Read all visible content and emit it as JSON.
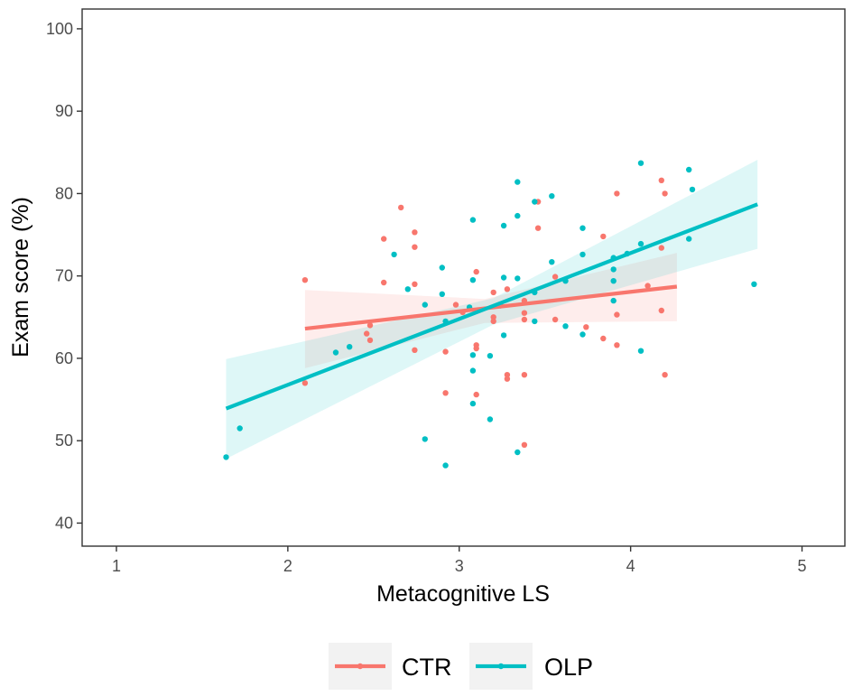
{
  "chart_data": {
    "type": "scatter",
    "title": "",
    "xlabel": "Metacognitive LS",
    "ylabel": "Exam score (%)",
    "xlim": [
      0.8,
      5.25
    ],
    "ylim": [
      37.2,
      102.4
    ],
    "xticks": [
      1,
      2,
      3,
      4,
      5
    ],
    "yticks": [
      40,
      50,
      60,
      70,
      80,
      90,
      100
    ],
    "grid": false,
    "legend_position": "bottom",
    "series": [
      {
        "name": "CTR",
        "color": "#F8766D",
        "points": [
          [
            2.1,
            69.5
          ],
          [
            2.1,
            57.0
          ],
          [
            2.46,
            63.0
          ],
          [
            2.48,
            64.0
          ],
          [
            2.48,
            62.2
          ],
          [
            2.56,
            74.5
          ],
          [
            2.56,
            69.2
          ],
          [
            2.66,
            78.3
          ],
          [
            2.74,
            75.3
          ],
          [
            2.74,
            73.5
          ],
          [
            2.74,
            69.0
          ],
          [
            2.74,
            61.0
          ],
          [
            2.92,
            60.8
          ],
          [
            2.92,
            55.8
          ],
          [
            3.1,
            70.5
          ],
          [
            3.1,
            61.6
          ],
          [
            3.1,
            61.2
          ],
          [
            3.1,
            55.6
          ],
          [
            3.2,
            68.0
          ],
          [
            3.2,
            65.0
          ],
          [
            3.2,
            64.5
          ],
          [
            3.28,
            68.4
          ],
          [
            3.28,
            58.0
          ],
          [
            3.28,
            57.5
          ],
          [
            3.38,
            67.0
          ],
          [
            3.38,
            65.5
          ],
          [
            3.38,
            64.7
          ],
          [
            3.38,
            58.0
          ],
          [
            3.38,
            49.5
          ],
          [
            3.46,
            79.0
          ],
          [
            3.46,
            75.8
          ],
          [
            3.56,
            69.9
          ],
          [
            3.56,
            64.7
          ],
          [
            3.74,
            63.8
          ],
          [
            3.84,
            74.8
          ],
          [
            3.84,
            62.4
          ],
          [
            3.92,
            80.0
          ],
          [
            3.92,
            65.3
          ],
          [
            3.92,
            61.6
          ],
          [
            4.1,
            68.8
          ],
          [
            4.18,
            81.6
          ],
          [
            4.2,
            80.0
          ],
          [
            4.18,
            73.4
          ],
          [
            4.18,
            65.8
          ],
          [
            4.2,
            58.0
          ],
          [
            2.98,
            66.5
          ],
          [
            3.02,
            65.6
          ]
        ],
        "fit": {
          "x": [
            2.1,
            4.27
          ],
          "y": [
            63.6,
            68.7
          ]
        },
        "band": {
          "x": [
            2.1,
            3.15,
            4.27
          ],
          "upper": [
            68.3,
            67.2,
            72.8
          ],
          "lower": [
            58.8,
            64.3,
            64.5
          ]
        }
      },
      {
        "name": "OLP",
        "color": "#00BFC4",
        "points": [
          [
            1.64,
            48.0
          ],
          [
            1.72,
            51.5
          ],
          [
            2.28,
            60.7
          ],
          [
            2.36,
            61.4
          ],
          [
            2.62,
            72.6
          ],
          [
            2.7,
            68.4
          ],
          [
            2.8,
            66.5
          ],
          [
            2.8,
            50.2
          ],
          [
            2.9,
            71.0
          ],
          [
            2.9,
            67.8
          ],
          [
            2.92,
            64.5
          ],
          [
            2.92,
            47.0
          ],
          [
            3.08,
            76.8
          ],
          [
            3.08,
            69.5
          ],
          [
            3.08,
            60.4
          ],
          [
            3.08,
            58.5
          ],
          [
            3.08,
            54.5
          ],
          [
            3.18,
            60.3
          ],
          [
            3.18,
            52.6
          ],
          [
            3.26,
            76.1
          ],
          [
            3.26,
            69.8
          ],
          [
            3.26,
            62.8
          ],
          [
            3.34,
            81.4
          ],
          [
            3.34,
            77.3
          ],
          [
            3.34,
            69.7
          ],
          [
            3.34,
            48.6
          ],
          [
            3.44,
            79.0
          ],
          [
            3.44,
            68.0
          ],
          [
            3.44,
            64.5
          ],
          [
            3.54,
            79.7
          ],
          [
            3.54,
            71.7
          ],
          [
            3.62,
            69.4
          ],
          [
            3.62,
            63.9
          ],
          [
            3.72,
            75.8
          ],
          [
            3.72,
            72.6
          ],
          [
            3.72,
            62.9
          ],
          [
            3.9,
            72.2
          ],
          [
            3.9,
            70.8
          ],
          [
            3.9,
            69.4
          ],
          [
            3.9,
            67.0
          ],
          [
            3.98,
            72.7
          ],
          [
            4.06,
            83.7
          ],
          [
            4.06,
            73.9
          ],
          [
            4.06,
            60.9
          ],
          [
            4.34,
            82.9
          ],
          [
            4.36,
            80.5
          ],
          [
            4.34,
            74.5
          ],
          [
            4.72,
            69.0
          ],
          [
            3.06,
            66.2
          ],
          [
            3.24,
            66.4
          ]
        ],
        "fit": {
          "x": [
            1.64,
            4.74
          ],
          "y": [
            53.9,
            78.7
          ]
        },
        "band": {
          "x": [
            1.64,
            3.2,
            4.74
          ],
          "upper": [
            59.9,
            67.3,
            84.1
          ],
          "lower": [
            47.8,
            64.1,
            73.3
          ]
        }
      }
    ]
  }
}
